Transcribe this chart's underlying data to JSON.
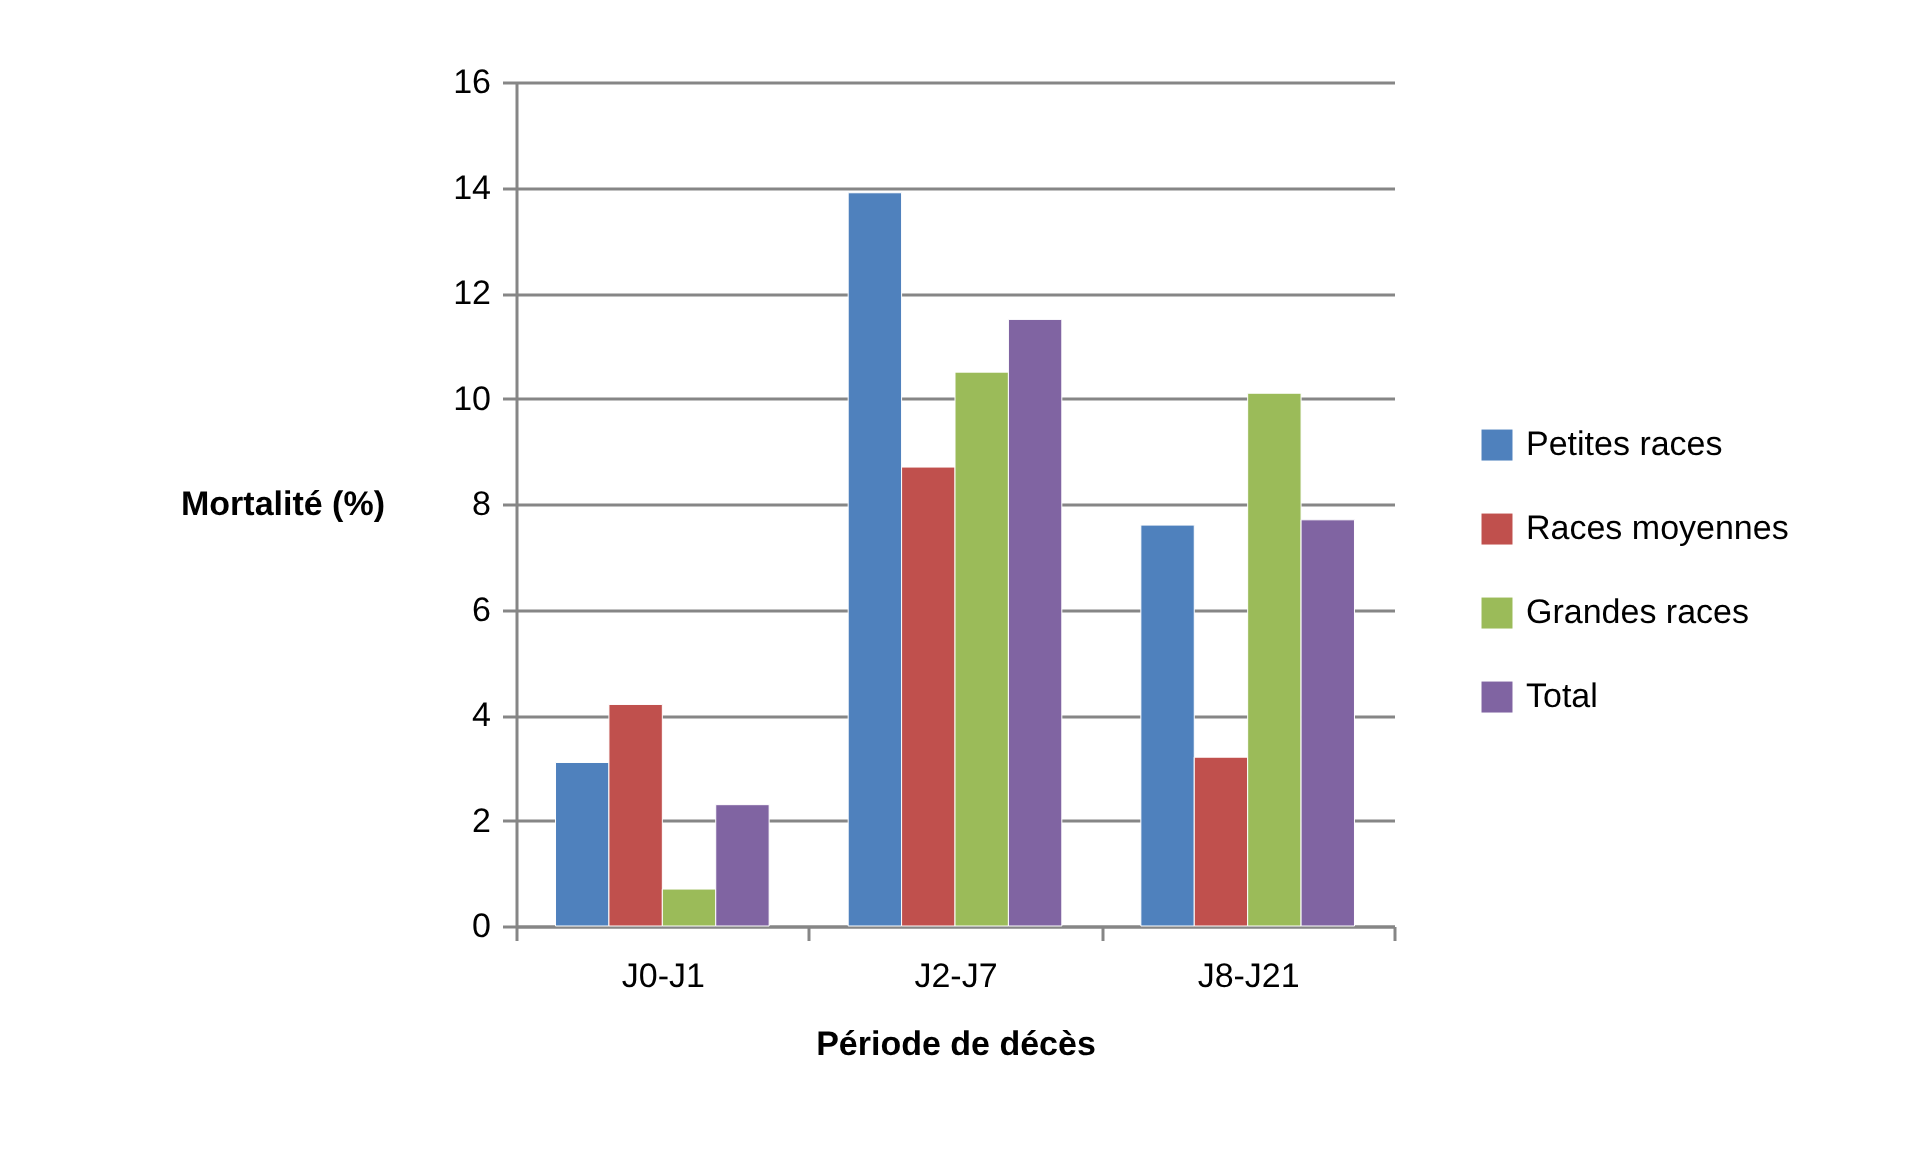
{
  "chart_data": {
    "type": "bar",
    "xlabel": "Période de décès",
    "ylabel": "Mortalité (%)",
    "categories": [
      "J0-J1",
      "J2-J7",
      "J8-J21"
    ],
    "series": [
      {
        "name": "Petites races",
        "color": "#4f81bd",
        "values": [
          3.1,
          13.9,
          7.6
        ]
      },
      {
        "name": "Races moyennes",
        "color": "#c0504d",
        "values": [
          4.2,
          8.7,
          3.2
        ]
      },
      {
        "name": "Grandes races",
        "color": "#9bbb59",
        "values": [
          0.7,
          10.5,
          10.1
        ]
      },
      {
        "name": "Total",
        "color": "#8064a2",
        "values": [
          2.3,
          11.5,
          7.7
        ]
      }
    ],
    "ylim": [
      0,
      16
    ],
    "yticks": [
      0,
      2,
      4,
      6,
      8,
      10,
      12,
      14,
      16
    ],
    "grid": "y",
    "legend": "right"
  }
}
